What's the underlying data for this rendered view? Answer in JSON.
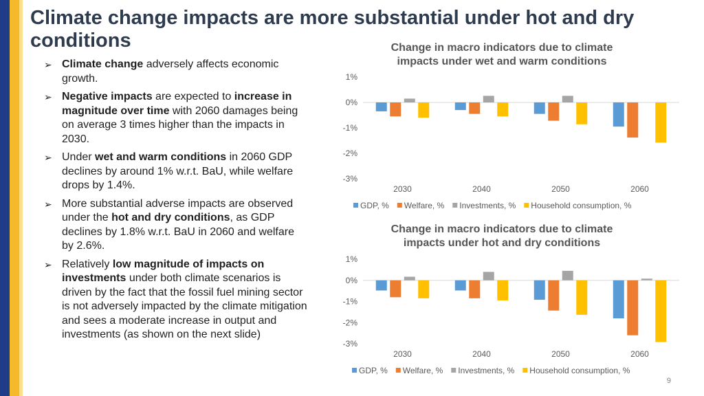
{
  "slide": {
    "title": "Climate change impacts are more substantial under hot and dry conditions",
    "page_number": "9",
    "bullet_glyph": "➢",
    "bullets": [
      [
        {
          "t": "Climate change",
          "b": true
        },
        {
          "t": " adversely affects economic growth.",
          "b": false
        }
      ],
      [
        {
          "t": "Negative impacts",
          "b": true
        },
        {
          "t": " are expected to ",
          "b": false
        },
        {
          "t": "increase in magnitude over time",
          "b": true
        },
        {
          "t": " with 2060 damages being on average 3 times higher than the impacts in 2030.",
          "b": false
        }
      ],
      [
        {
          "t": "Under ",
          "b": false
        },
        {
          "t": "wet and warm conditions",
          "b": true
        },
        {
          "t": " in 2060 GDP declines by around 1% w.r.t. BaU, while welfare drops by 1.4%.",
          "b": false
        }
      ],
      [
        {
          "t": "More substantial adverse impacts are observed under the ",
          "b": false
        },
        {
          "t": "hot and dry conditions",
          "b": true
        },
        {
          "t": ", as GDP declines by 1.8% w.r.t. BaU in 2060 and welfare by 2.6%.",
          "b": false
        }
      ],
      [
        {
          "t": "Relatively ",
          "b": false
        },
        {
          "t": "low magnitude of impacts on investments",
          "b": true
        },
        {
          "t": " under both climate scenarios is driven by the fact that the fossil fuel mining sector is not adversely impacted by the climate mitigation and sees a moderate increase in output and investments (as shown on the next slide)",
          "b": false
        }
      ]
    ]
  },
  "colors": {
    "gdp": "#5b9bd5",
    "welfare": "#ed7d31",
    "investments": "#a5a5a5",
    "household": "#ffc000",
    "zero_line": "#d9d9d9"
  },
  "chart_data": [
    {
      "type": "bar",
      "title": "Change in macro indicators due to climate impacts under wet and warm conditions",
      "categories": [
        "2030",
        "2040",
        "2050",
        "2060"
      ],
      "series": [
        {
          "name": "GDP, %",
          "values": [
            -0.35,
            -0.3,
            -0.45,
            -0.95
          ]
        },
        {
          "name": "Welfare, %",
          "values": [
            -0.55,
            -0.45,
            -0.72,
            -1.38
          ]
        },
        {
          "name": "Investments, %",
          "values": [
            0.15,
            0.26,
            0.26,
            0.0
          ]
        },
        {
          "name": "Household consumption, %",
          "values": [
            -0.6,
            -0.55,
            -0.86,
            -1.58
          ]
        }
      ],
      "yticks": [
        "1%",
        "0%",
        "-1%",
        "-2%",
        "-3%"
      ],
      "ylim": [
        -3,
        1
      ],
      "legend": "bottom"
    },
    {
      "type": "bar",
      "title": "Change in macro indicators due to climate impacts under hot and dry conditions",
      "categories": [
        "2030",
        "2040",
        "2050",
        "2060"
      ],
      "series": [
        {
          "name": "GDP, %",
          "values": [
            -0.48,
            -0.48,
            -0.92,
            -1.8
          ]
        },
        {
          "name": "Welfare, %",
          "values": [
            -0.8,
            -0.85,
            -1.43,
            -2.6
          ]
        },
        {
          "name": "Investments, %",
          "values": [
            0.17,
            0.4,
            0.45,
            0.08
          ]
        },
        {
          "name": "Household consumption, %",
          "values": [
            -0.85,
            -0.95,
            -1.63,
            -2.92
          ]
        }
      ],
      "yticks": [
        "1%",
        "0%",
        "-1%",
        "-2%",
        "-3%"
      ],
      "ylim": [
        -3,
        1
      ],
      "legend": "bottom"
    }
  ]
}
